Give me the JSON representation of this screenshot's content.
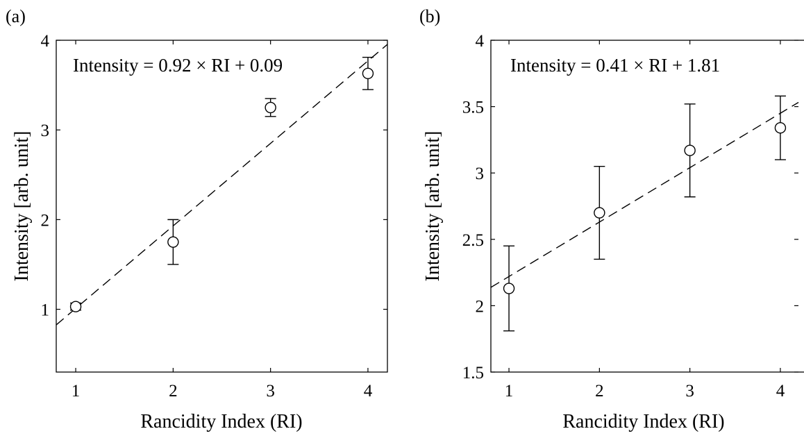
{
  "chart_data": [
    {
      "panel_label": "(a)",
      "type": "scatter",
      "equation": "Intensity = 0.92 × RI + 0.09",
      "xlabel": "Rancidity Index (RI)",
      "ylabel": "Intensity [arb. unit]",
      "xlim": [
        0.8,
        4.2
      ],
      "ylim": [
        0.3,
        4
      ],
      "xticks": [
        1,
        2,
        3,
        4
      ],
      "xtick_labels": [
        "1",
        "2",
        "3",
        "4"
      ],
      "yticks": [
        1,
        2,
        3,
        4
      ],
      "ytick_labels": [
        "1",
        "2",
        "3",
        "4"
      ],
      "fit": {
        "slope": 0.92,
        "intercept": 0.09
      },
      "x": [
        1,
        2,
        3,
        4
      ],
      "y": [
        1.03,
        1.75,
        3.25,
        3.63
      ],
      "yerr": [
        0.04,
        0.25,
        0.1,
        0.18
      ]
    },
    {
      "panel_label": "(b)",
      "type": "scatter",
      "equation": "Intensity = 0.41 × RI + 1.81",
      "xlabel": "Rancidity Index (RI)",
      "ylabel": "Intensity [arb. unit]",
      "xlim": [
        0.8,
        4.2
      ],
      "ylim": [
        1.5,
        4
      ],
      "xticks": [
        1,
        2,
        3,
        4
      ],
      "xtick_labels": [
        "1",
        "2",
        "3",
        "4"
      ],
      "yticks": [
        1.5,
        2,
        2.5,
        3,
        3.5,
        4
      ],
      "ytick_labels": [
        "1.5",
        "2",
        "2.5",
        "3",
        "3.5",
        "4"
      ],
      "fit": {
        "slope": 0.41,
        "intercept": 1.81
      },
      "x": [
        1,
        2,
        3,
        4
      ],
      "y": [
        2.13,
        2.7,
        3.17,
        3.34
      ],
      "yerr": [
        0.32,
        0.35,
        0.35,
        0.24
      ]
    }
  ]
}
